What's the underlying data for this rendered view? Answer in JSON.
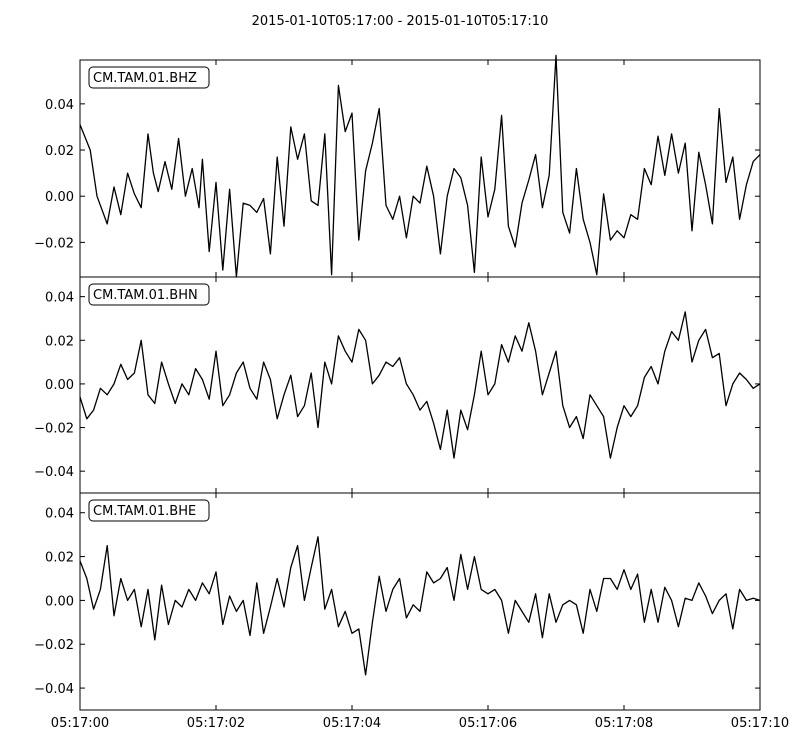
{
  "chart_data": {
    "type": "line",
    "title": "2015-01-10T05:17:00  -  2015-01-10T05:17:10",
    "x_tick_labels": [
      "05:17:00",
      "05:17:02",
      "05:17:04",
      "05:17:06",
      "05:17:08",
      "05:17:10"
    ],
    "x_ticks_seconds": [
      0,
      2,
      4,
      6,
      8,
      10
    ],
    "xlim_seconds": [
      0,
      10
    ],
    "grid": false,
    "line_color": "#000000",
    "panels": [
      {
        "label": "CM.TAM.01.BHZ",
        "ylim": [
          -0.035,
          0.059
        ],
        "y_ticks": [
          0.04,
          0.02,
          0.0,
          -0.02
        ],
        "y_tick_labels": [
          "0.04",
          "0.02",
          "0.00",
          "−0.02"
        ],
        "series": [
          {
            "x": [
              0.0,
              0.15,
              0.25,
              0.4,
              0.5,
              0.6,
              0.7,
              0.8,
              0.9,
              1.0,
              1.08,
              1.15,
              1.25,
              1.35,
              1.45,
              1.55,
              1.65,
              1.75,
              1.8,
              1.9,
              2.0,
              2.1,
              2.2,
              2.3,
              2.4,
              2.5,
              2.6,
              2.7,
              2.8,
              2.9,
              3.0,
              3.1,
              3.2,
              3.3,
              3.4,
              3.5,
              3.6,
              3.7,
              3.8,
              3.9,
              4.0,
              4.1,
              4.2,
              4.3,
              4.4,
              4.5,
              4.6,
              4.7,
              4.8,
              4.9,
              5.0,
              5.1,
              5.2,
              5.3,
              5.4,
              5.5,
              5.6,
              5.7,
              5.8,
              5.9,
              6.0,
              6.1,
              6.2,
              6.3,
              6.4,
              6.5,
              6.6,
              6.7,
              6.8,
              6.9,
              7.0,
              7.1,
              7.2,
              7.3,
              7.4,
              7.5,
              7.6,
              7.7,
              7.8,
              7.9,
              8.0,
              8.1,
              8.2,
              8.3,
              8.4,
              8.5,
              8.6,
              8.7,
              8.8,
              8.9,
              9.0,
              9.1,
              9.2,
              9.3,
              9.4,
              9.5,
              9.6,
              9.7,
              9.8,
              9.9,
              10.0
            ],
            "y": [
              0.031,
              0.02,
              0.0,
              -0.012,
              0.004,
              -0.008,
              0.01,
              0.001,
              -0.005,
              0.027,
              0.01,
              0.002,
              0.015,
              0.003,
              0.025,
              0.0,
              0.012,
              -0.005,
              0.016,
              -0.024,
              0.006,
              -0.032,
              0.003,
              -0.035,
              -0.003,
              -0.004,
              -0.007,
              -0.001,
              -0.025,
              0.017,
              -0.013,
              0.03,
              0.016,
              0.027,
              -0.002,
              -0.004,
              0.027,
              -0.034,
              0.048,
              0.028,
              0.036,
              -0.019,
              0.011,
              0.023,
              0.038,
              -0.004,
              -0.01,
              0.0,
              -0.018,
              0.0,
              -0.003,
              0.013,
              0.0,
              -0.025,
              0.0,
              0.012,
              0.008,
              -0.004,
              -0.033,
              0.017,
              -0.009,
              0.003,
              0.035,
              -0.013,
              -0.022,
              -0.003,
              0.007,
              0.018,
              -0.005,
              0.009,
              0.061,
              -0.007,
              -0.016,
              0.012,
              -0.01,
              -0.02,
              -0.034,
              0.001,
              -0.019,
              -0.015,
              -0.018,
              -0.008,
              -0.01,
              0.012,
              0.005,
              0.026,
              0.009,
              0.027,
              0.01,
              0.023,
              -0.015,
              0.019,
              0.005,
              -0.012,
              0.038,
              0.006,
              0.017,
              -0.01,
              0.005,
              0.015,
              0.018
            ]
          }
        ]
      },
      {
        "label": "CM.TAM.01.BHN",
        "ylim": [
          -0.05,
          0.049
        ],
        "y_ticks": [
          0.04,
          0.02,
          0.0,
          -0.02,
          -0.04
        ],
        "y_tick_labels": [
          "0.04",
          "0.02",
          "0.00",
          "−0.02",
          "−0.04"
        ],
        "series": [
          {
            "x": [
              0.0,
              0.1,
              0.2,
              0.3,
              0.4,
              0.5,
              0.6,
              0.7,
              0.8,
              0.9,
              1.0,
              1.1,
              1.2,
              1.3,
              1.4,
              1.5,
              1.6,
              1.7,
              1.8,
              1.9,
              2.0,
              2.1,
              2.2,
              2.3,
              2.4,
              2.5,
              2.6,
              2.7,
              2.8,
              2.9,
              3.0,
              3.1,
              3.2,
              3.3,
              3.4,
              3.5,
              3.6,
              3.7,
              3.8,
              3.9,
              4.0,
              4.1,
              4.2,
              4.3,
              4.4,
              4.5,
              4.6,
              4.7,
              4.8,
              4.9,
              5.0,
              5.1,
              5.2,
              5.3,
              5.4,
              5.5,
              5.6,
              5.7,
              5.8,
              5.9,
              6.0,
              6.1,
              6.2,
              6.3,
              6.4,
              6.5,
              6.6,
              6.7,
              6.8,
              6.9,
              7.0,
              7.1,
              7.2,
              7.3,
              7.4,
              7.5,
              7.6,
              7.7,
              7.8,
              7.9,
              8.0,
              8.1,
              8.2,
              8.3,
              8.4,
              8.5,
              8.6,
              8.7,
              8.8,
              8.9,
              9.0,
              9.1,
              9.2,
              9.3,
              9.4,
              9.5,
              9.6,
              9.7,
              9.8,
              9.9,
              10.0
            ],
            "y": [
              -0.006,
              -0.016,
              -0.012,
              -0.002,
              -0.005,
              0.0,
              0.009,
              0.002,
              0.005,
              0.02,
              -0.005,
              -0.009,
              0.01,
              0.0,
              -0.009,
              0.0,
              -0.005,
              0.007,
              0.002,
              -0.007,
              0.015,
              -0.01,
              -0.005,
              0.005,
              0.01,
              -0.002,
              -0.007,
              0.01,
              0.002,
              -0.016,
              -0.005,
              0.004,
              -0.015,
              -0.01,
              0.005,
              -0.02,
              0.01,
              0.0,
              0.022,
              0.015,
              0.01,
              0.025,
              0.02,
              0.0,
              0.004,
              0.01,
              0.008,
              0.012,
              0.0,
              -0.005,
              -0.012,
              -0.008,
              -0.018,
              -0.03,
              -0.012,
              -0.034,
              -0.012,
              -0.021,
              -0.005,
              0.015,
              -0.005,
              0.0,
              0.018,
              0.01,
              0.022,
              0.015,
              0.028,
              0.015,
              -0.005,
              0.005,
              0.015,
              -0.01,
              -0.02,
              -0.015,
              -0.025,
              -0.005,
              -0.01,
              -0.015,
              -0.034,
              -0.02,
              -0.01,
              -0.015,
              -0.01,
              0.003,
              0.008,
              0.0,
              0.015,
              0.024,
              0.02,
              0.033,
              0.01,
              0.02,
              0.025,
              0.012,
              0.014,
              -0.01,
              0.0,
              0.005,
              0.002,
              -0.002,
              0.0
            ]
          }
        ]
      },
      {
        "label": "CM.TAM.01.BHE",
        "ylim": [
          -0.05,
          0.049
        ],
        "y_ticks": [
          0.04,
          0.02,
          0.0,
          -0.02,
          -0.04
        ],
        "y_tick_labels": [
          "0.04",
          "0.02",
          "0.00",
          "−0.02",
          "−0.04"
        ],
        "series": [
          {
            "x": [
              0.0,
              0.1,
              0.2,
              0.3,
              0.4,
              0.5,
              0.6,
              0.7,
              0.8,
              0.9,
              1.0,
              1.1,
              1.2,
              1.3,
              1.4,
              1.5,
              1.6,
              1.7,
              1.8,
              1.9,
              2.0,
              2.1,
              2.2,
              2.3,
              2.4,
              2.5,
              2.6,
              2.7,
              2.8,
              2.9,
              3.0,
              3.1,
              3.2,
              3.3,
              3.4,
              3.5,
              3.6,
              3.7,
              3.8,
              3.9,
              4.0,
              4.1,
              4.2,
              4.3,
              4.4,
              4.5,
              4.6,
              4.7,
              4.8,
              4.9,
              5.0,
              5.1,
              5.2,
              5.3,
              5.4,
              5.5,
              5.6,
              5.7,
              5.8,
              5.9,
              6.0,
              6.1,
              6.2,
              6.3,
              6.4,
              6.5,
              6.6,
              6.7,
              6.8,
              6.9,
              7.0,
              7.1,
              7.2,
              7.3,
              7.4,
              7.5,
              7.6,
              7.7,
              7.8,
              7.9,
              8.0,
              8.1,
              8.2,
              8.3,
              8.4,
              8.5,
              8.6,
              8.7,
              8.8,
              8.9,
              9.0,
              9.1,
              9.2,
              9.3,
              9.4,
              9.5,
              9.6,
              9.7,
              9.8,
              9.9,
              10.0
            ],
            "y": [
              0.018,
              0.01,
              -0.004,
              0.005,
              0.025,
              -0.007,
              0.01,
              0.0,
              0.005,
              -0.012,
              0.005,
              -0.018,
              0.007,
              -0.011,
              0.0,
              -0.003,
              0.005,
              0.0,
              0.008,
              0.003,
              0.013,
              -0.011,
              0.002,
              -0.005,
              0.0,
              -0.016,
              0.008,
              -0.015,
              -0.003,
              0.01,
              -0.003,
              0.015,
              0.025,
              0.0,
              0.015,
              0.029,
              -0.004,
              0.005,
              -0.012,
              -0.005,
              -0.015,
              -0.013,
              -0.034,
              -0.01,
              0.011,
              -0.005,
              0.005,
              0.01,
              -0.008,
              -0.002,
              -0.005,
              0.013,
              0.008,
              0.01,
              0.015,
              0.0,
              0.021,
              0.005,
              0.02,
              0.005,
              0.003,
              0.005,
              0.0,
              -0.015,
              0.0,
              -0.005,
              -0.01,
              0.003,
              -0.017,
              0.003,
              -0.01,
              -0.002,
              0.0,
              -0.002,
              -0.015,
              0.005,
              -0.005,
              0.01,
              0.01,
              0.005,
              0.014,
              0.005,
              0.012,
              -0.01,
              0.005,
              -0.01,
              0.006,
              0.0,
              -0.012,
              0.001,
              0.0,
              0.008,
              0.002,
              -0.006,
              0.0,
              0.003,
              -0.013,
              0.005,
              0.0,
              0.001,
              0.0
            ]
          }
        ]
      }
    ]
  }
}
